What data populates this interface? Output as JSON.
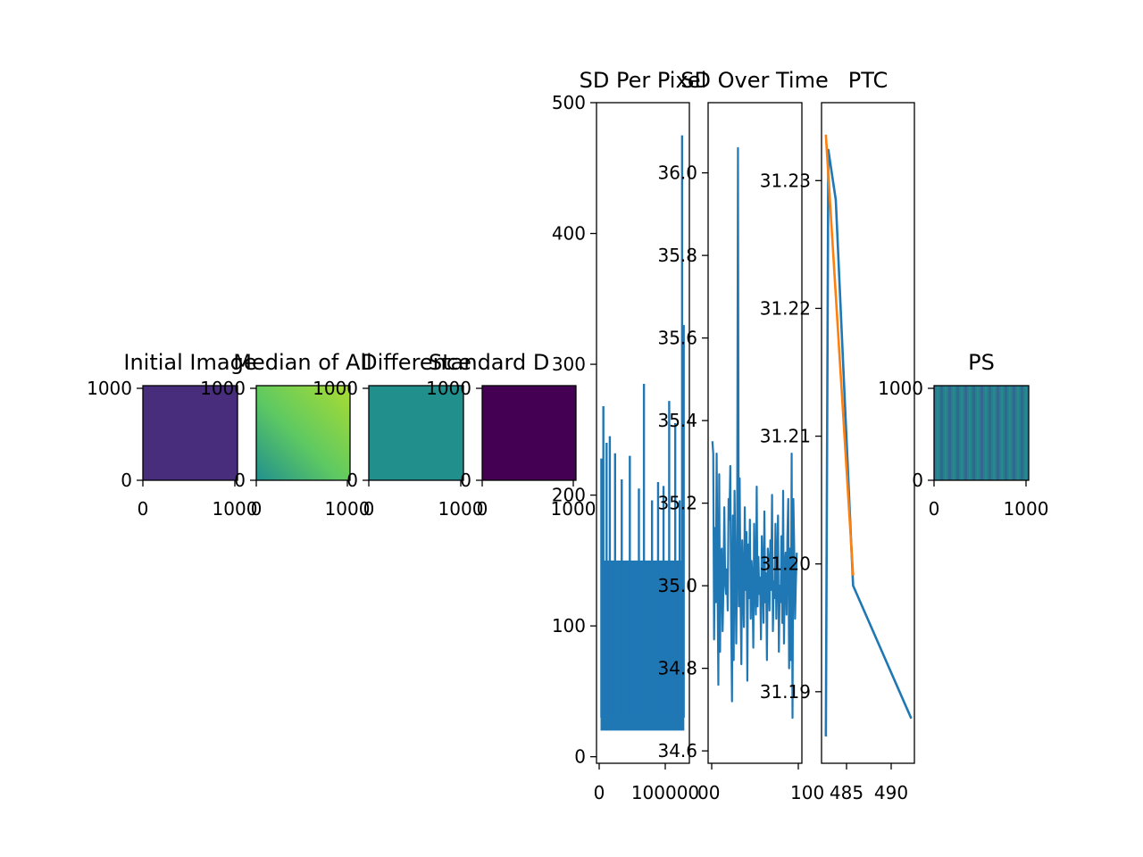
{
  "figure": {
    "background": "#ffffff"
  },
  "colors": {
    "blue": "#1f77b4",
    "orange": "#ff7f0e",
    "viridis_dark": "#440154",
    "viridis_mid": "#21908d",
    "viridis_bright": "#9ed93a"
  },
  "chart_data": [
    {
      "id": "initial_image",
      "type": "heatmap",
      "title": "Initial Image",
      "colormap": "viridis",
      "tone": "uniform dark indigo",
      "xticks": [
        "0",
        "1000"
      ],
      "yticks": [
        "1000",
        "0"
      ],
      "xlim": [
        0,
        1024
      ],
      "ylim": [
        0,
        1024
      ]
    },
    {
      "id": "median_of_all",
      "type": "heatmap",
      "title": "Median of All",
      "colormap": "viridis",
      "tone": "teal-to-yellow gradient, brighter toward upper right",
      "xticks": [
        "0",
        "1000"
      ],
      "yticks": [
        "1000",
        "0"
      ],
      "xlim": [
        0,
        1024
      ],
      "ylim": [
        0,
        1024
      ]
    },
    {
      "id": "difference",
      "type": "heatmap",
      "title": "Difference",
      "colormap": "viridis",
      "tone": "uniform teal",
      "xticks": [
        "0",
        "1000"
      ],
      "yticks": [
        "1000",
        "0"
      ],
      "xlim": [
        0,
        1024
      ],
      "ylim": [
        0,
        1024
      ]
    },
    {
      "id": "standard_deviation",
      "type": "heatmap",
      "title": "Standard D",
      "colormap": "viridis",
      "tone": "uniform dark purple",
      "xticks": [
        "0",
        "1000"
      ],
      "yticks": [
        "1000",
        "0"
      ],
      "xlim": [
        0,
        1024
      ],
      "ylim": [
        0,
        1024
      ]
    },
    {
      "id": "sd_per_pixel",
      "type": "line",
      "title": "SD Per Pixel",
      "xlim": [
        -20000,
        440000
      ],
      "ylim": [
        -5,
        500
      ],
      "xticks": [
        "0",
        "100000"
      ],
      "yticks": [
        "0",
        "100",
        "200",
        "300",
        "400",
        "500"
      ],
      "band_range": [
        20,
        150
      ],
      "spikes": [
        {
          "x": 4000,
          "y": 228
        },
        {
          "x": 14000,
          "y": 268
        },
        {
          "x": 30000,
          "y": 240
        },
        {
          "x": 46000,
          "y": 245
        },
        {
          "x": 72000,
          "y": 232
        },
        {
          "x": 105000,
          "y": 212
        },
        {
          "x": 145000,
          "y": 230
        },
        {
          "x": 190000,
          "y": 205
        },
        {
          "x": 215000,
          "y": 285
        },
        {
          "x": 255000,
          "y": 196
        },
        {
          "x": 285000,
          "y": 210
        },
        {
          "x": 312000,
          "y": 207
        },
        {
          "x": 340000,
          "y": 272
        },
        {
          "x": 370000,
          "y": 255
        },
        {
          "x": 392000,
          "y": 196
        },
        {
          "x": 404000,
          "y": 475
        },
        {
          "x": 412000,
          "y": 330
        }
      ]
    },
    {
      "id": "sd_over_time",
      "type": "line",
      "title": "SD Over Time",
      "xlim": [
        -5,
        105
      ],
      "ylim": [
        34.57,
        36.17
      ],
      "xticks": [
        "00",
        "100"
      ],
      "yticks": [
        "34.6",
        "34.8",
        "35.0",
        "35.2",
        "35.4",
        "35.6",
        "35.8",
        "36.0"
      ],
      "series": [
        {
          "name": "",
          "values": [
            35.35,
            35.32,
            34.87,
            35.14,
            34.96,
            35.32,
            35.03,
            34.76,
            35.27,
            34.84,
            35.08,
            35.09,
            34.89,
            35.0,
            35.19,
            35.01,
            34.98,
            35.04,
            34.94,
            35.21,
            35.16,
            35.29,
            34.94,
            34.72,
            35.17,
            34.82,
            35.23,
            35.05,
            34.86,
            35.07,
            36.06,
            34.95,
            35.26,
            34.98,
            34.81,
            35.11,
            35.01,
            34.9,
            35.19,
            34.99,
            35.13,
            34.77,
            35.1,
            34.97,
            35.16,
            34.92,
            35.06,
            35.01,
            34.85,
            35.15,
            35.0,
            34.93,
            35.24,
            34.95,
            35.07,
            34.98,
            35.02,
            34.87,
            35.12,
            35.04,
            34.91,
            35.18,
            34.96,
            35.03,
            34.82,
            35.09,
            35.06,
            34.94,
            35.11,
            34.99,
            35.22,
            34.89,
            35.01,
            34.97,
            35.15,
            34.92,
            35.05,
            35.17,
            34.84,
            35.0,
            34.96,
            35.12,
            34.91,
            35.23,
            34.86,
            35.04,
            35.08,
            34.93,
            35.12,
            35.21,
            34.8,
            35.09,
            34.82,
            35.32,
            34.68,
            35.21,
            35.09,
            34.92,
            35.01,
            35.08
          ]
        }
      ]
    },
    {
      "id": "ptc",
      "type": "line",
      "title": "PTC",
      "xlim": [
        480.5,
        495.5
      ],
      "ylim": [
        31.1844,
        31.2361
      ],
      "xticks": [
        "485",
        "490"
      ],
      "yticks": [
        "31.19",
        "31.20",
        "31.21",
        "31.22",
        "31.23"
      ],
      "series": [
        {
          "name": "",
          "color": "blue",
          "x": [
            481.2,
            481.6,
            481.6,
            482.8,
            485.6,
            495.0
          ],
          "y": [
            31.1865,
            31.2324,
            31.2324,
            31.2285,
            31.1983,
            31.1879
          ]
        },
        {
          "name": "",
          "color": "orange",
          "x": [
            481.2,
            485.6
          ],
          "y": [
            31.2336,
            31.1991
          ]
        }
      ]
    },
    {
      "id": "ps",
      "type": "heatmap",
      "title": "PS",
      "colormap": "viridis",
      "tone": "teal with faint vertical stripes",
      "xticks": [
        "0",
        "1000"
      ],
      "yticks": [
        "1000",
        "0"
      ],
      "xlim": [
        0,
        1024
      ],
      "ylim": [
        0,
        1024
      ]
    }
  ]
}
